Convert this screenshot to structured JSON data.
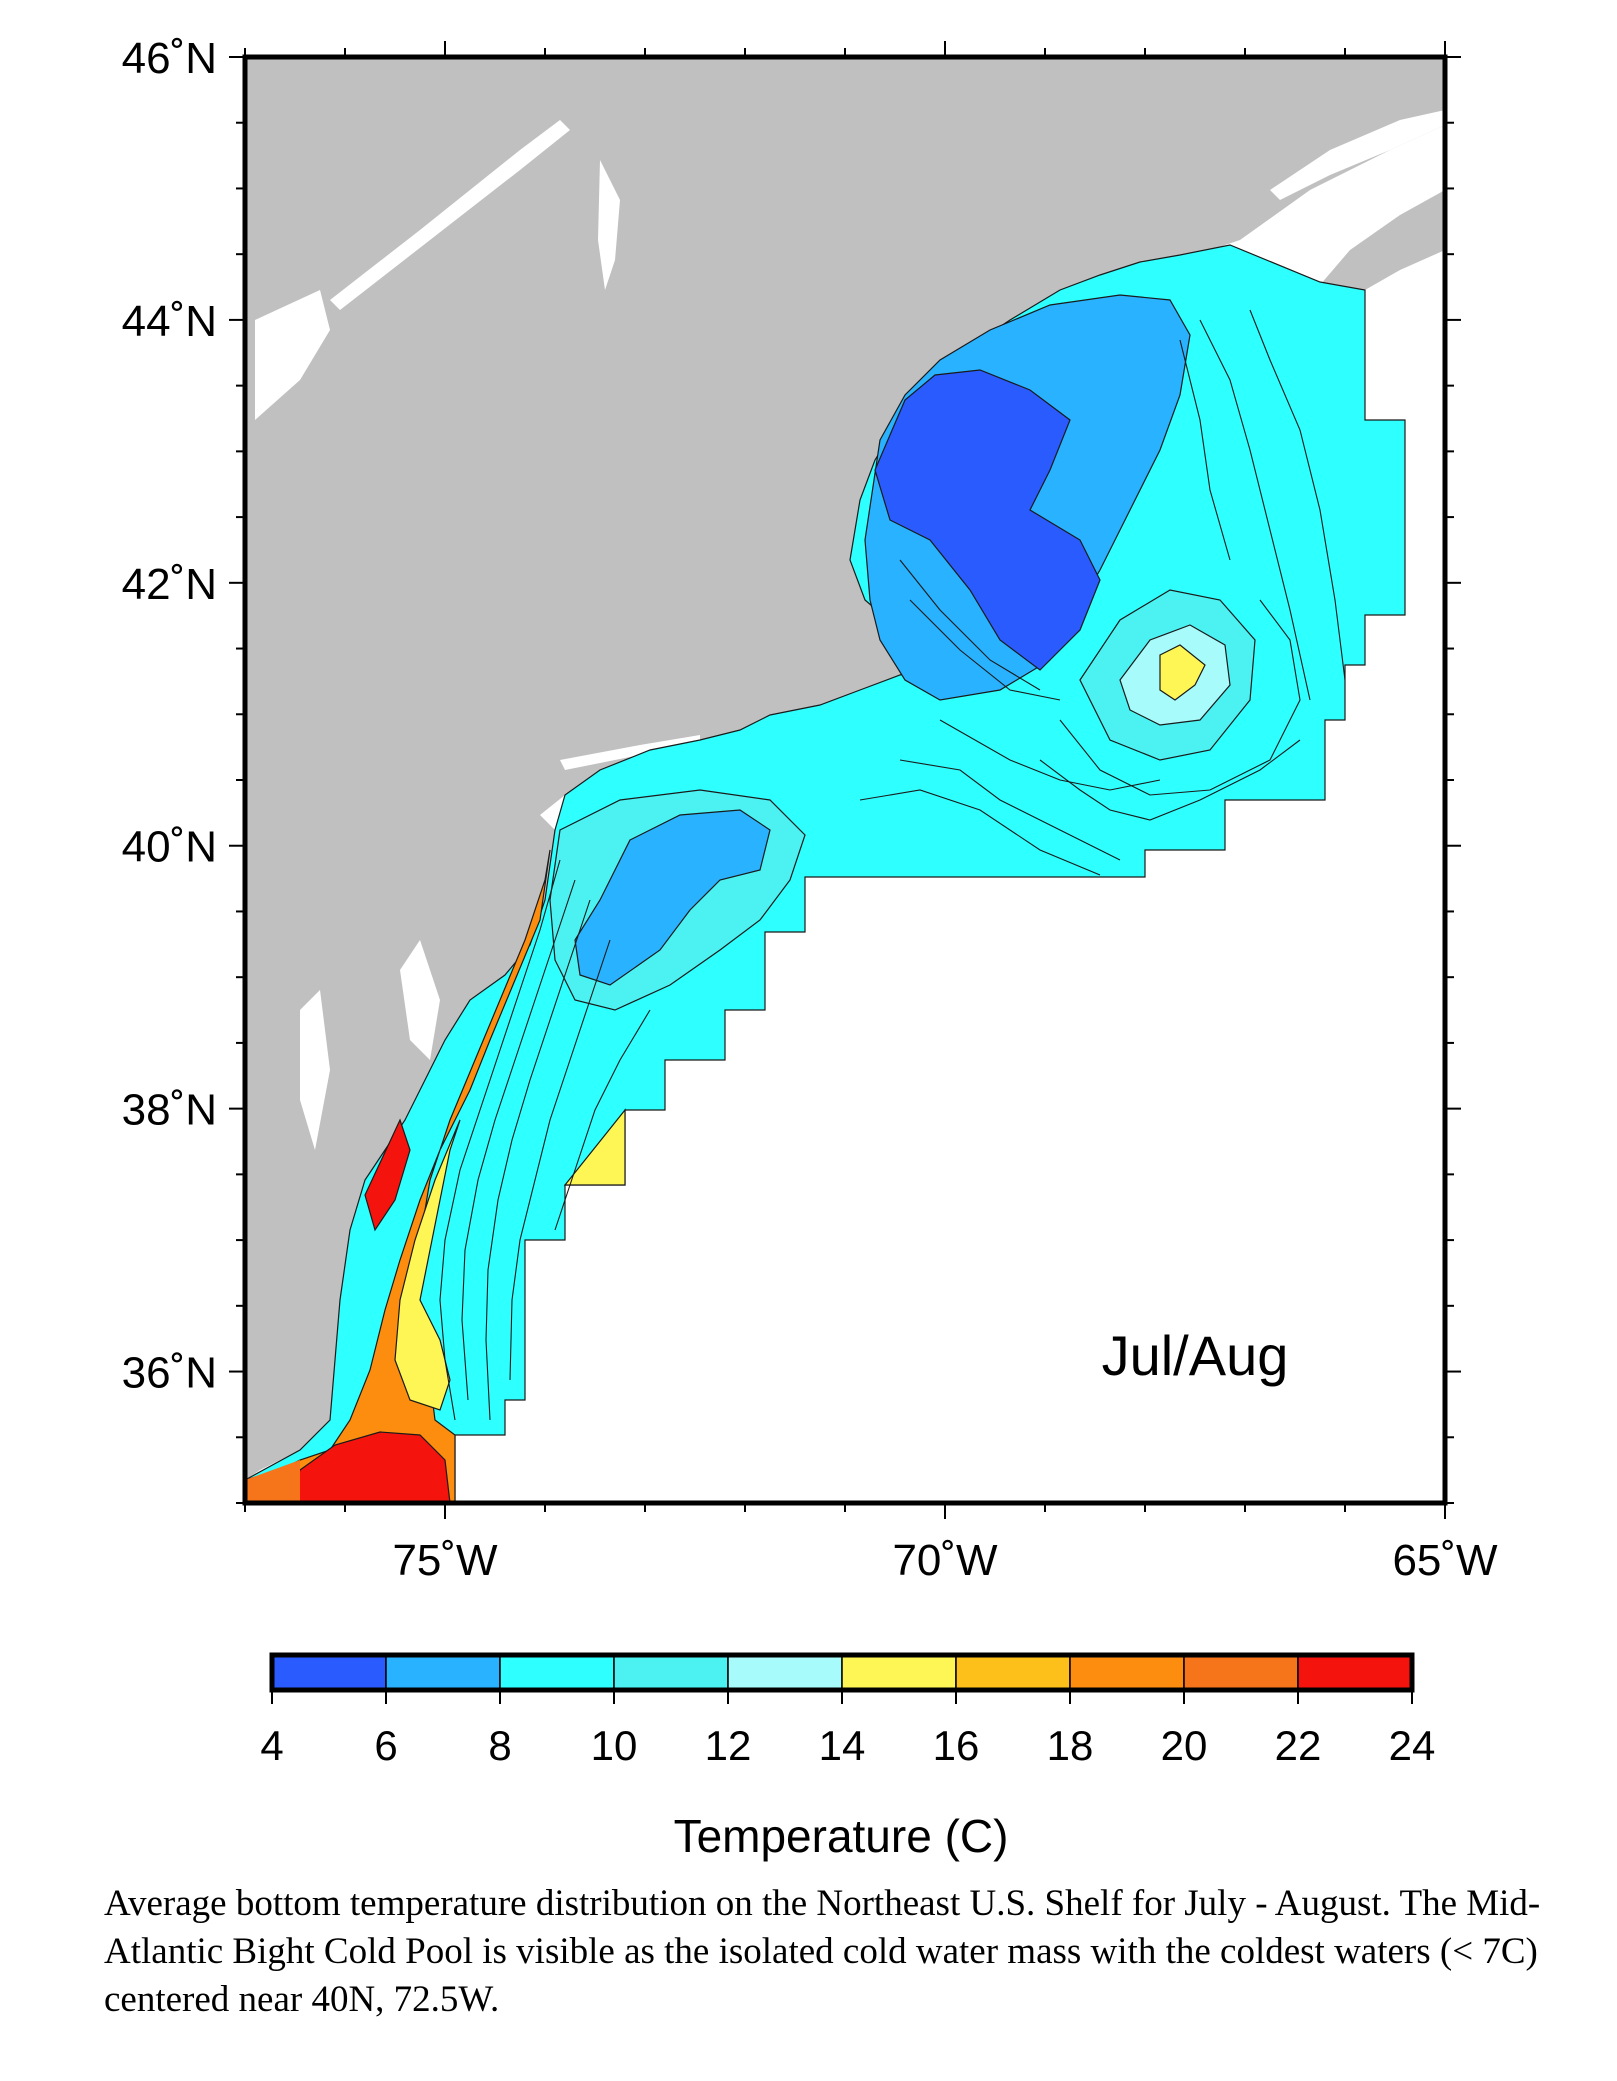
{
  "map": {
    "period_label": "Jul/Aug",
    "lat_ticks": [
      {
        "value": 46,
        "label": "46˚N"
      },
      {
        "value": 44,
        "label": "44˚N"
      },
      {
        "value": 42,
        "label": "42˚N"
      },
      {
        "value": 40,
        "label": "40˚N"
      },
      {
        "value": 38,
        "label": "38˚N"
      },
      {
        "value": 36,
        "label": "36˚N"
      }
    ],
    "lon_ticks": [
      {
        "value": -75,
        "label": "75˚W"
      },
      {
        "value": -70,
        "label": "70˚W"
      },
      {
        "value": -65,
        "label": "65˚W"
      }
    ],
    "lat_range": [
      35.0,
      46.0
    ],
    "lon_range": [
      -77.0,
      -65.0
    ],
    "colors": {
      "land": "#c0c0c0",
      "water_inland": "#ffffff",
      "frame": "#000000",
      "contour": "#1a1a1a"
    }
  },
  "colorbar": {
    "title": "Temperature (C)",
    "ticks": [
      "4",
      "6",
      "8",
      "10",
      "12",
      "14",
      "16",
      "18",
      "20",
      "22",
      "24"
    ],
    "colors": [
      "#2a5bff",
      "#29b2ff",
      "#2effff",
      "#4cf2f2",
      "#a8fbfb",
      "#fdf654",
      "#fdbf1a",
      "#fc8d0f",
      "#f6741a",
      "#f5130e"
    ]
  },
  "caption": "Average bottom temperature distribution on the Northeast U.S. Shelf for July - August. The Mid-Atlantic Bight Cold Pool is visible as the isolated cold water mass with the coldest waters (< 7C) centered near 40N, 72.5W."
}
